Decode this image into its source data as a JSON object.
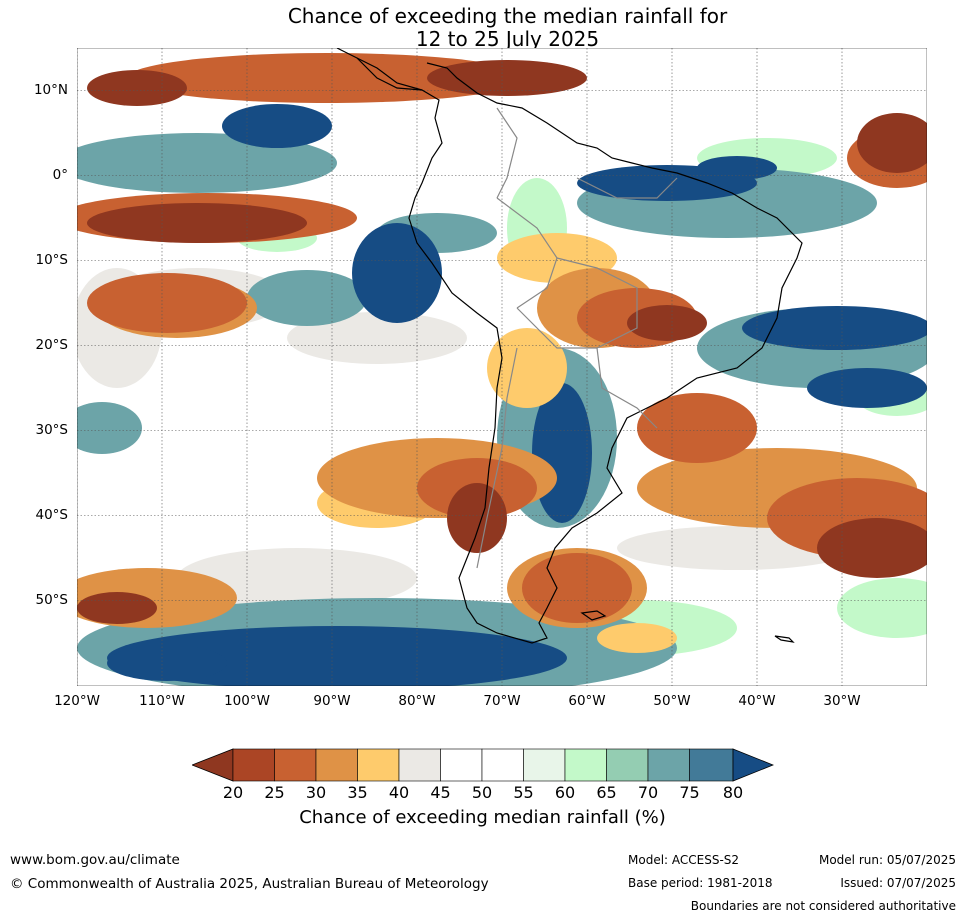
{
  "title": {
    "line1": "Chance of exceeding the median rainfall for",
    "line2": "12 to 25 July 2025"
  },
  "map": {
    "lat_labels": [
      "10°N",
      "0°",
      "10°S",
      "20°S",
      "30°S",
      "40°S",
      "50°S"
    ],
    "lon_labels": [
      "120°W",
      "110°W",
      "100°W",
      "90°W",
      "80°W",
      "70°W",
      "60°W",
      "50°W",
      "40°W",
      "30°W"
    ],
    "extent": {
      "lon_min": -120,
      "lon_max": -20,
      "lat_min": -60,
      "lat_max": 15
    },
    "gridlines": true
  },
  "colorbar": {
    "ticks": [
      "20",
      "25",
      "30",
      "35",
      "40",
      "45",
      "50",
      "55",
      "60",
      "65",
      "70",
      "75",
      "80"
    ],
    "label": "Chance of exceeding median rainfall (%)",
    "colors": {
      "below_20": "#8f3720",
      "20_25": "#ab4525",
      "25_30": "#c86131",
      "30_35": "#df9246",
      "35_40": "#fecb6c",
      "40_45": "#ebe9e5",
      "45_50": "#ffffff",
      "50_55": "#ffffff",
      "55_60": "#e8f5e9",
      "60_65": "#c3f9c9",
      "65_70": "#94cdb2",
      "70_75": "#6ca4a8",
      "75_80": "#427a98",
      "above_80": "#164c84"
    }
  },
  "footer": {
    "website": "www.bom.gov.au/climate",
    "copyright": "© Commonwealth of Australia 2025, Australian Bureau of Meteorology",
    "model": "Model: ACCESS-S2",
    "base_period": "Base period: 1981-2018",
    "model_run": "Model run: 05/07/2025",
    "issued": "Issued: 07/07/2025",
    "disclaimer": "Boundaries are not considered authoritative"
  }
}
